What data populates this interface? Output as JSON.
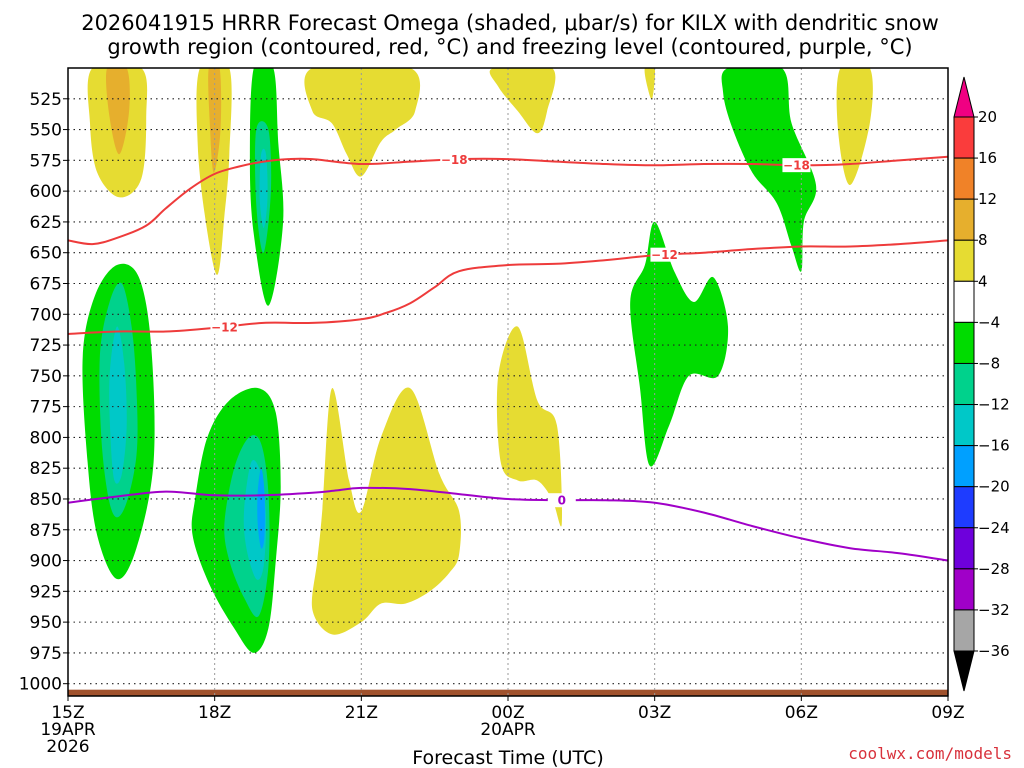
{
  "chart_data": {
    "type": "time-height contour",
    "title": [
      "2026041915 HRRR Forecast Omega (shaded, μbar/s) for KILX with dendritic snow",
      "growth region (contoured, red, °C) and freezing level (contoured, purple, °C)"
    ],
    "xlabel": "Forecast Time (UTC)",
    "xlim": [
      0,
      18
    ],
    "ylim": [
      500,
      1010
    ],
    "x_ticks": [
      {
        "x": 0,
        "label": "15Z",
        "sub": [
          "19APR",
          "2026"
        ]
      },
      {
        "x": 3,
        "label": "18Z",
        "sub": []
      },
      {
        "x": 6,
        "label": "21Z",
        "sub": []
      },
      {
        "x": 9,
        "label": "00Z",
        "sub": [
          "20APR"
        ]
      },
      {
        "x": 12,
        "label": "03Z",
        "sub": []
      },
      {
        "x": 15,
        "label": "06Z",
        "sub": []
      },
      {
        "x": 18,
        "label": "09Z",
        "sub": []
      }
    ],
    "y_ticks": [
      525,
      550,
      575,
      600,
      625,
      650,
      675,
      700,
      725,
      750,
      775,
      800,
      825,
      850,
      875,
      900,
      925,
      950,
      975,
      1000
    ],
    "colorbar": {
      "levels": [
        -36,
        -32,
        -28,
        -24,
        -20,
        -16,
        -12,
        -8,
        -4,
        4,
        8,
        12,
        16,
        20
      ],
      "labels": [
        "20",
        "16",
        "12",
        "8",
        "4",
        "−4",
        "−8",
        "−12",
        "−16",
        "−20",
        "−24",
        "−28",
        "−32",
        "−36"
      ],
      "colors": [
        "#000000",
        "#a6a6a6",
        "#a000c8",
        "#6e00dc",
        "#1e3cff",
        "#00a0ff",
        "#00c8c8",
        "#00d28c",
        "#00dc00",
        "#ffffff",
        "#e6dc32",
        "#e6af2d",
        "#f08228",
        "#fa3c3c",
        "#f00082"
      ]
    },
    "contours": [
      {
        "name": "-18",
        "label": "−18",
        "color": "#ee3b3b",
        "x": [
          0,
          0.5,
          1,
          1.6,
          2,
          2.5,
          3,
          3.5,
          4,
          4.5,
          5,
          6,
          7,
          8,
          9,
          10,
          11,
          12,
          13,
          14,
          15,
          16,
          17,
          18
        ],
        "p": [
          640,
          643,
          638,
          628,
          614,
          598,
          586,
          580,
          576,
          574,
          574,
          578,
          576,
          574,
          574,
          576,
          578,
          579,
          578,
          578,
          579,
          578,
          575,
          572
        ],
        "label_x": [
          7.9,
          14.9
        ]
      },
      {
        "name": "-12",
        "label": "−12",
        "color": "#ee3b3b",
        "x": [
          0,
          1,
          2,
          3,
          4,
          5,
          6,
          6.5,
          7,
          7.5,
          8,
          9,
          10,
          11,
          12,
          13,
          14,
          15,
          16,
          17,
          18
        ],
        "p": [
          716,
          714,
          714,
          711,
          707,
          707,
          704,
          699,
          691,
          678,
          665,
          660,
          659,
          656,
          652,
          650,
          647,
          645,
          645,
          643,
          640
        ],
        "label_x": [
          3.2,
          12.2
        ]
      },
      {
        "name": "freezing",
        "label": "0",
        "color": "#a000c8",
        "x": [
          0,
          1,
          2,
          3,
          4,
          5,
          5.5,
          6,
          7,
          8,
          9,
          10,
          11,
          12,
          13,
          14,
          15,
          16,
          17,
          18
        ],
        "p": [
          853,
          848,
          844,
          847,
          847,
          845,
          843,
          841,
          842,
          846,
          850,
          851,
          851,
          853,
          861,
          872,
          882,
          890,
          894,
          900
        ],
        "label_x": [
          10.1
        ]
      }
    ],
    "shading": [
      {
        "value": 6,
        "color": "#e6dc32",
        "points": [
          [
            0.5,
            500
          ],
          [
            1.5,
            500
          ],
          [
            1.6,
            540
          ],
          [
            1.5,
            590
          ],
          [
            1.05,
            605
          ],
          [
            0.6,
            585
          ],
          [
            0.45,
            545
          ]
        ]
      },
      {
        "value": 10,
        "color": "#e6af2d",
        "points": [
          [
            0.8,
            500
          ],
          [
            1.2,
            500
          ],
          [
            1.25,
            535
          ],
          [
            1.05,
            570
          ],
          [
            0.85,
            540
          ]
        ]
      },
      {
        "value": 6,
        "color": "#e6dc32",
        "points": [
          [
            2.7,
            500
          ],
          [
            3.3,
            500
          ],
          [
            3.3,
            570
          ],
          [
            3.2,
            620
          ],
          [
            3.05,
            668
          ],
          [
            2.8,
            620
          ],
          [
            2.65,
            560
          ]
        ]
      },
      {
        "value": 10,
        "color": "#e6af2d",
        "points": [
          [
            2.88,
            500
          ],
          [
            3.1,
            500
          ],
          [
            3.12,
            550
          ],
          [
            2.98,
            585
          ],
          [
            2.9,
            545
          ]
        ]
      },
      {
        "value": -6,
        "color": "#00dc00",
        "points": [
          [
            3.8,
            500
          ],
          [
            4.2,
            500
          ],
          [
            4.3,
            560
          ],
          [
            4.4,
            625
          ],
          [
            4.1,
            693
          ],
          [
            3.8,
            635
          ],
          [
            3.72,
            575
          ]
        ]
      },
      {
        "value": -10,
        "color": "#00d28c",
        "points": [
          [
            3.85,
            550
          ],
          [
            4.1,
            550
          ],
          [
            4.15,
            600
          ],
          [
            4.0,
            650
          ],
          [
            3.85,
            610
          ]
        ]
      },
      {
        "value": -14,
        "color": "#00c8c8",
        "points": [
          [
            3.95,
            570
          ],
          [
            4.05,
            570
          ],
          [
            4.08,
            605
          ],
          [
            4.0,
            630
          ],
          [
            3.92,
            605
          ]
        ]
      },
      {
        "value": 6,
        "color": "#e6dc32",
        "points": [
          [
            5.0,
            500
          ],
          [
            7.0,
            500
          ],
          [
            7.1,
            535
          ],
          [
            6.7,
            550
          ],
          [
            6.4,
            560
          ],
          [
            6.0,
            588
          ],
          [
            5.7,
            570
          ],
          [
            5.4,
            545
          ],
          [
            5.0,
            535
          ]
        ]
      },
      {
        "value": 6,
        "color": "#e6dc32",
        "points": [
          [
            8.7,
            500
          ],
          [
            9.9,
            500
          ],
          [
            9.8,
            535
          ],
          [
            9.6,
            553
          ],
          [
            9.2,
            535
          ],
          [
            8.8,
            515
          ]
        ]
      },
      {
        "value": 6,
        "color": "#e6dc32",
        "points": [
          [
            11.8,
            500
          ],
          [
            12.0,
            500
          ],
          [
            11.95,
            525
          ],
          [
            11.85,
            515
          ]
        ]
      },
      {
        "value": -6,
        "color": "#00dc00",
        "points": [
          [
            13.5,
            500
          ],
          [
            14.6,
            500
          ],
          [
            14.8,
            545
          ],
          [
            15.3,
            595
          ],
          [
            15.05,
            625
          ],
          [
            15.0,
            665
          ],
          [
            14.8,
            645
          ],
          [
            14.5,
            610
          ],
          [
            14.0,
            585
          ],
          [
            13.6,
            550
          ],
          [
            13.4,
            520
          ]
        ]
      },
      {
        "value": 6,
        "color": "#e6dc32",
        "points": [
          [
            15.8,
            500
          ],
          [
            16.4,
            500
          ],
          [
            16.4,
            545
          ],
          [
            16.0,
            595
          ],
          [
            15.75,
            550
          ]
        ]
      },
      {
        "value": -6,
        "color": "#00dc00",
        "points": [
          [
            0.3,
            735
          ],
          [
            0.55,
            685
          ],
          [
            1.0,
            660
          ],
          [
            1.45,
            670
          ],
          [
            1.7,
            725
          ],
          [
            1.75,
            820
          ],
          [
            1.4,
            890
          ],
          [
            1.0,
            915
          ],
          [
            0.6,
            880
          ],
          [
            0.4,
            820
          ]
        ]
      },
      {
        "value": -10,
        "color": "#00d28c",
        "points": [
          [
            0.65,
            735
          ],
          [
            0.85,
            690
          ],
          [
            1.1,
            675
          ],
          [
            1.3,
            710
          ],
          [
            1.4,
            760
          ],
          [
            1.4,
            815
          ],
          [
            1.15,
            858
          ],
          [
            0.9,
            860
          ],
          [
            0.7,
            810
          ]
        ]
      },
      {
        "value": -14,
        "color": "#00c8c8",
        "points": [
          [
            0.85,
            750
          ],
          [
            1.0,
            710
          ],
          [
            1.15,
            740
          ],
          [
            1.2,
            790
          ],
          [
            1.1,
            830
          ],
          [
            0.95,
            835
          ],
          [
            0.87,
            800
          ]
        ]
      },
      {
        "value": -6,
        "color": "#00dc00",
        "points": [
          [
            2.6,
            850
          ],
          [
            2.85,
            800
          ],
          [
            3.3,
            770
          ],
          [
            3.9,
            760
          ],
          [
            4.25,
            780
          ],
          [
            4.35,
            840
          ],
          [
            4.25,
            900
          ],
          [
            4.1,
            955
          ],
          [
            3.8,
            975
          ],
          [
            3.4,
            955
          ],
          [
            2.9,
            920
          ],
          [
            2.55,
            880
          ]
        ]
      },
      {
        "value": -10,
        "color": "#00d28c",
        "points": [
          [
            3.2,
            870
          ],
          [
            3.4,
            825
          ],
          [
            3.7,
            800
          ],
          [
            3.95,
            805
          ],
          [
            4.1,
            845
          ],
          [
            4.1,
            905
          ],
          [
            3.9,
            945
          ],
          [
            3.6,
            930
          ],
          [
            3.3,
            900
          ]
        ]
      },
      {
        "value": -14,
        "color": "#00c8c8",
        "points": [
          [
            3.6,
            860
          ],
          [
            3.75,
            820
          ],
          [
            3.95,
            830
          ],
          [
            4.05,
            865
          ],
          [
            4.0,
            905
          ],
          [
            3.85,
            915
          ],
          [
            3.65,
            890
          ]
        ]
      },
      {
        "value": -18,
        "color": "#00a0ff",
        "points": [
          [
            3.88,
            845
          ],
          [
            3.95,
            825
          ],
          [
            4.02,
            845
          ],
          [
            4.02,
            880
          ],
          [
            3.95,
            890
          ],
          [
            3.88,
            870
          ]
        ]
      },
      {
        "value": 6,
        "color": "#e6dc32",
        "points": [
          [
            5.0,
            940
          ],
          [
            5.1,
            900
          ],
          [
            5.2,
            860
          ],
          [
            5.4,
            760
          ],
          [
            5.75,
            835
          ],
          [
            6.0,
            860
          ],
          [
            6.4,
            800
          ],
          [
            7.0,
            760
          ],
          [
            7.6,
            830
          ],
          [
            8.0,
            860
          ],
          [
            8.0,
            895
          ],
          [
            7.8,
            910
          ],
          [
            7.4,
            925
          ],
          [
            6.9,
            935
          ],
          [
            6.4,
            935
          ],
          [
            6.0,
            950
          ],
          [
            5.4,
            960
          ]
        ]
      },
      {
        "value": 6,
        "color": "#e6dc32",
        "points": [
          [
            8.8,
            750
          ],
          [
            9.2,
            710
          ],
          [
            9.6,
            770
          ],
          [
            10.0,
            790
          ],
          [
            10.1,
            870
          ],
          [
            9.9,
            850
          ],
          [
            9.6,
            835
          ],
          [
            9.2,
            835
          ],
          [
            8.85,
            820
          ]
        ]
      },
      {
        "value": -6,
        "color": "#00dc00",
        "points": [
          [
            11.5,
            690
          ],
          [
            11.8,
            660
          ],
          [
            12.0,
            625
          ],
          [
            12.4,
            665
          ],
          [
            12.8,
            690
          ],
          [
            13.2,
            670
          ],
          [
            13.5,
            710
          ],
          [
            13.3,
            750
          ],
          [
            12.7,
            750
          ],
          [
            12.3,
            790
          ],
          [
            11.9,
            823
          ],
          [
            11.7,
            760
          ]
        ]
      }
    ]
  },
  "credit": "coolwx.com/models"
}
